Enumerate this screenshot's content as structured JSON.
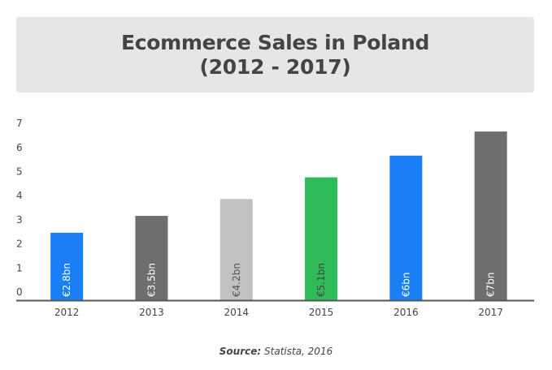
{
  "title": {
    "line1": "Ecommerce Sales in Poland",
    "line2": "(2012 - 2017)"
  },
  "chart_data": {
    "type": "bar",
    "title": "Ecommerce Sales in Poland (2012 - 2017)",
    "categories": [
      "2012",
      "2013",
      "2014",
      "2015",
      "2016",
      "2017"
    ],
    "values": [
      2.8,
      3.5,
      4.2,
      5.1,
      6,
      7
    ],
    "data_labels": [
      "€2.8bn",
      "€3.5bn",
      "€4.2bn",
      "€5.1bn",
      "€6bn",
      "€7bn"
    ],
    "colors": [
      "#1a7ef5",
      "#6d6e70",
      "#bfc1c3",
      "#2fbc58",
      "#1a7ef5",
      "#6d6e70"
    ],
    "label_colors": [
      "#ffffff",
      "#ffffff",
      "#555555",
      "#444444",
      "#ffffff",
      "#ffffff"
    ],
    "yticks": [
      "0",
      "1",
      "2",
      "3",
      "4",
      "5",
      "6",
      "7"
    ],
    "ylim": [
      0,
      7.3
    ],
    "grid": false,
    "legend": "none"
  },
  "source": {
    "label": "Source:",
    "text": "Statista, 2016"
  }
}
